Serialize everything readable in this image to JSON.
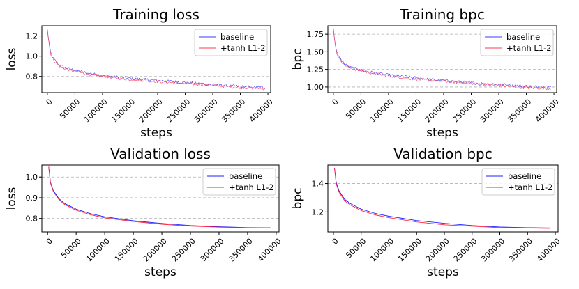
{
  "chart_data": [
    {
      "type": "line",
      "title": "Training loss",
      "xlabel": "steps",
      "ylabel": "loss",
      "xlim": [
        -10000,
        405000
      ],
      "ylim": [
        0.64,
        1.3
      ],
      "xticks": [
        0,
        50000,
        100000,
        150000,
        200000,
        250000,
        300000,
        350000,
        400000
      ],
      "xtick_labels": [
        "0",
        "50000",
        "100000",
        "150000",
        "200000",
        "250000",
        "300000",
        "350000",
        "400000"
      ],
      "yticks": [
        0.8,
        1.0,
        1.2
      ],
      "ytick_labels": [
        "0.8",
        "1.0",
        "1.2"
      ],
      "grid": "y-dashed",
      "legend": "top-right",
      "noisy": true,
      "series": [
        {
          "name": "baseline",
          "color": "#3b3bff",
          "x": [
            0,
            5000,
            10000,
            20000,
            30000,
            50000,
            75000,
            100000,
            150000,
            200000,
            250000,
            300000,
            350000,
            395000
          ],
          "y": [
            1.26,
            1.05,
            0.98,
            0.92,
            0.89,
            0.86,
            0.83,
            0.81,
            0.78,
            0.76,
            0.74,
            0.72,
            0.7,
            0.69
          ]
        },
        {
          "name": "+tanh L1-2",
          "color": "#ff3b5c",
          "x": [
            0,
            5000,
            10000,
            20000,
            30000,
            50000,
            75000,
            100000,
            150000,
            200000,
            250000,
            300000,
            350000,
            395000
          ],
          "y": [
            1.26,
            1.04,
            0.97,
            0.91,
            0.88,
            0.85,
            0.82,
            0.8,
            0.77,
            0.75,
            0.73,
            0.71,
            0.69,
            0.68
          ]
        }
      ]
    },
    {
      "type": "line",
      "title": "Training bpc",
      "xlabel": "steps",
      "ylabel": "bpc",
      "xlim": [
        -10000,
        405000
      ],
      "ylim": [
        0.92,
        1.87
      ],
      "xticks": [
        0,
        50000,
        100000,
        150000,
        200000,
        250000,
        300000,
        350000,
        400000
      ],
      "xtick_labels": [
        "0",
        "50000",
        "100000",
        "150000",
        "200000",
        "250000",
        "300000",
        "350000",
        "400000"
      ],
      "yticks": [
        1.0,
        1.25,
        1.5,
        1.75
      ],
      "ytick_labels": [
        "1.00",
        "1.25",
        "1.50",
        "1.75"
      ],
      "grid": "y-dashed",
      "legend": "top-right",
      "noisy": true,
      "series": [
        {
          "name": "baseline",
          "color": "#3b3bff",
          "x": [
            0,
            5000,
            10000,
            20000,
            30000,
            50000,
            75000,
            100000,
            150000,
            200000,
            250000,
            300000,
            350000,
            395000
          ],
          "y": [
            1.82,
            1.52,
            1.42,
            1.33,
            1.28,
            1.24,
            1.2,
            1.17,
            1.13,
            1.09,
            1.06,
            1.04,
            1.01,
            1.0
          ]
        },
        {
          "name": "+tanh L1-2",
          "color": "#ff3b5c",
          "x": [
            0,
            5000,
            10000,
            20000,
            30000,
            50000,
            75000,
            100000,
            150000,
            200000,
            250000,
            300000,
            350000,
            395000
          ],
          "y": [
            1.82,
            1.51,
            1.41,
            1.32,
            1.27,
            1.23,
            1.19,
            1.16,
            1.11,
            1.08,
            1.05,
            1.02,
            0.99,
            0.98
          ]
        }
      ]
    },
    {
      "type": "line",
      "title": "Validation loss",
      "xlabel": "steps",
      "ylabel": "loss",
      "xlim": [
        -10000,
        405000
      ],
      "ylim": [
        0.735,
        1.058
      ],
      "xticks": [
        0,
        50000,
        100000,
        150000,
        200000,
        250000,
        300000,
        350000,
        400000
      ],
      "xtick_labels": [
        "0",
        "50000",
        "100000",
        "150000",
        "200000",
        "250000",
        "300000",
        "350000",
        "400000"
      ],
      "yticks": [
        0.8,
        0.9,
        1.0
      ],
      "ytick_labels": [
        "0.8",
        "0.9",
        "1.0"
      ],
      "grid": "y-dashed",
      "legend": "top-right",
      "noisy": false,
      "series": [
        {
          "name": "baseline",
          "color": "#1f1fff",
          "x": [
            2000,
            5000,
            10000,
            20000,
            30000,
            50000,
            75000,
            100000,
            150000,
            200000,
            250000,
            300000,
            350000,
            390000
          ],
          "y": [
            1.05,
            0.975,
            0.935,
            0.895,
            0.872,
            0.845,
            0.823,
            0.808,
            0.789,
            0.776,
            0.766,
            0.76,
            0.756,
            0.755
          ]
        },
        {
          "name": "+tanh L1-2",
          "color": "#ff1f3c",
          "x": [
            2000,
            5000,
            10000,
            20000,
            30000,
            50000,
            75000,
            100000,
            150000,
            200000,
            250000,
            300000,
            350000,
            390000
          ],
          "y": [
            1.05,
            0.972,
            0.93,
            0.89,
            0.867,
            0.84,
            0.818,
            0.803,
            0.785,
            0.772,
            0.763,
            0.758,
            0.755,
            0.754
          ]
        }
      ]
    },
    {
      "type": "line",
      "title": "Validation bpc",
      "xlabel": "steps",
      "ylabel": "bpc",
      "xlim": [
        -10000,
        405000
      ],
      "ylim": [
        1.06,
        1.53
      ],
      "xticks": [
        0,
        50000,
        100000,
        150000,
        200000,
        250000,
        300000,
        350000,
        400000
      ],
      "xtick_labels": [
        "0",
        "50000",
        "100000",
        "150000",
        "200000",
        "250000",
        "300000",
        "350000",
        "400000"
      ],
      "yticks": [
        1.2,
        1.4
      ],
      "ytick_labels": [
        "1.2",
        "1.4"
      ],
      "grid": "y-dashed",
      "legend": "top-right",
      "noisy": false,
      "series": [
        {
          "name": "baseline",
          "color": "#1f1fff",
          "x": [
            2000,
            5000,
            10000,
            20000,
            30000,
            50000,
            75000,
            100000,
            150000,
            200000,
            250000,
            300000,
            350000,
            390000
          ],
          "y": [
            1.51,
            1.41,
            1.35,
            1.29,
            1.26,
            1.22,
            1.19,
            1.17,
            1.14,
            1.12,
            1.105,
            1.095,
            1.09,
            1.088
          ]
        },
        {
          "name": "+tanh L1-2",
          "color": "#ff1f3c",
          "x": [
            2000,
            5000,
            10000,
            20000,
            30000,
            50000,
            75000,
            100000,
            150000,
            200000,
            250000,
            300000,
            350000,
            390000
          ],
          "y": [
            1.51,
            1.4,
            1.34,
            1.28,
            1.25,
            1.21,
            1.18,
            1.16,
            1.13,
            1.11,
            1.1,
            1.09,
            1.087,
            1.085
          ]
        }
      ]
    }
  ]
}
